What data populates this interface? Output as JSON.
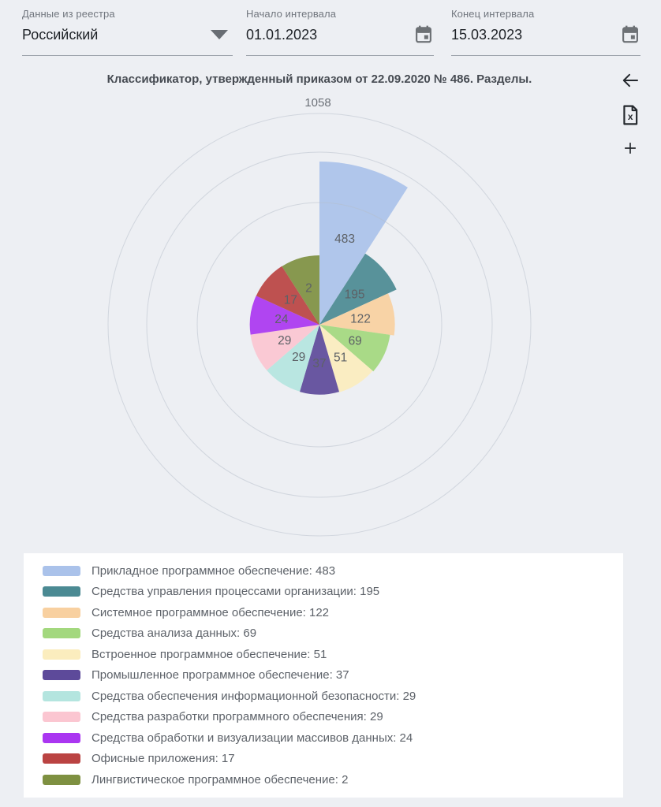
{
  "filters": {
    "registry": {
      "label": "Данные из реестра",
      "value": "Российский"
    },
    "start": {
      "label": "Начало интервала",
      "value": "01.01.2023"
    },
    "end": {
      "label": "Конец интервала",
      "value": "15.03.2023"
    }
  },
  "toolbar": {
    "buttons": [
      {
        "name": "back",
        "icon": "arrow-left-icon"
      },
      {
        "name": "export-excel",
        "icon": "excel-file-icon"
      },
      {
        "name": "zoom-in",
        "icon": "plus-icon"
      }
    ]
  },
  "chart_data": {
    "type": "pie",
    "variant": "nightingale-rose-polar-area",
    "title": "Классификатор, утвержденный приказом от 22.09.2020 № 486. Разделы.",
    "total": 1058,
    "axis_max_label": "1058",
    "grid": true,
    "legend_position": "bottom-left",
    "slices": [
      {
        "label": "Прикладное программное обеспечение",
        "value": 483,
        "color": "#aac2ea"
      },
      {
        "label": "Средства управления процессами организации",
        "value": 195,
        "color": "#4b8a93"
      },
      {
        "label": "Системное программное обеспечение",
        "value": 122,
        "color": "#f8d0a0"
      },
      {
        "label": "Средства анализа данных",
        "value": 69,
        "color": "#a3d87e"
      },
      {
        "label": "Встроенное программное обеспечение",
        "value": 51,
        "color": "#fbedbe"
      },
      {
        "label": "Промышленное программное обеспечение",
        "value": 37,
        "color": "#5d4a9a"
      },
      {
        "label": "Средства обеспечения информационной безопасности",
        "value": 29,
        "color": "#b4e5df"
      },
      {
        "label": "Средства разработки программного обеспечения",
        "value": 29,
        "color": "#fbc6d1"
      },
      {
        "label": "Средства обработки и визуализации массивов данных",
        "value": 24,
        "color": "#aa36f1"
      },
      {
        "label": "Офисные приложения",
        "value": 17,
        "color": "#ba4342"
      },
      {
        "label": "Лингвистическое программное обеспечение",
        "value": 2,
        "color": "#7e9041"
      }
    ]
  }
}
